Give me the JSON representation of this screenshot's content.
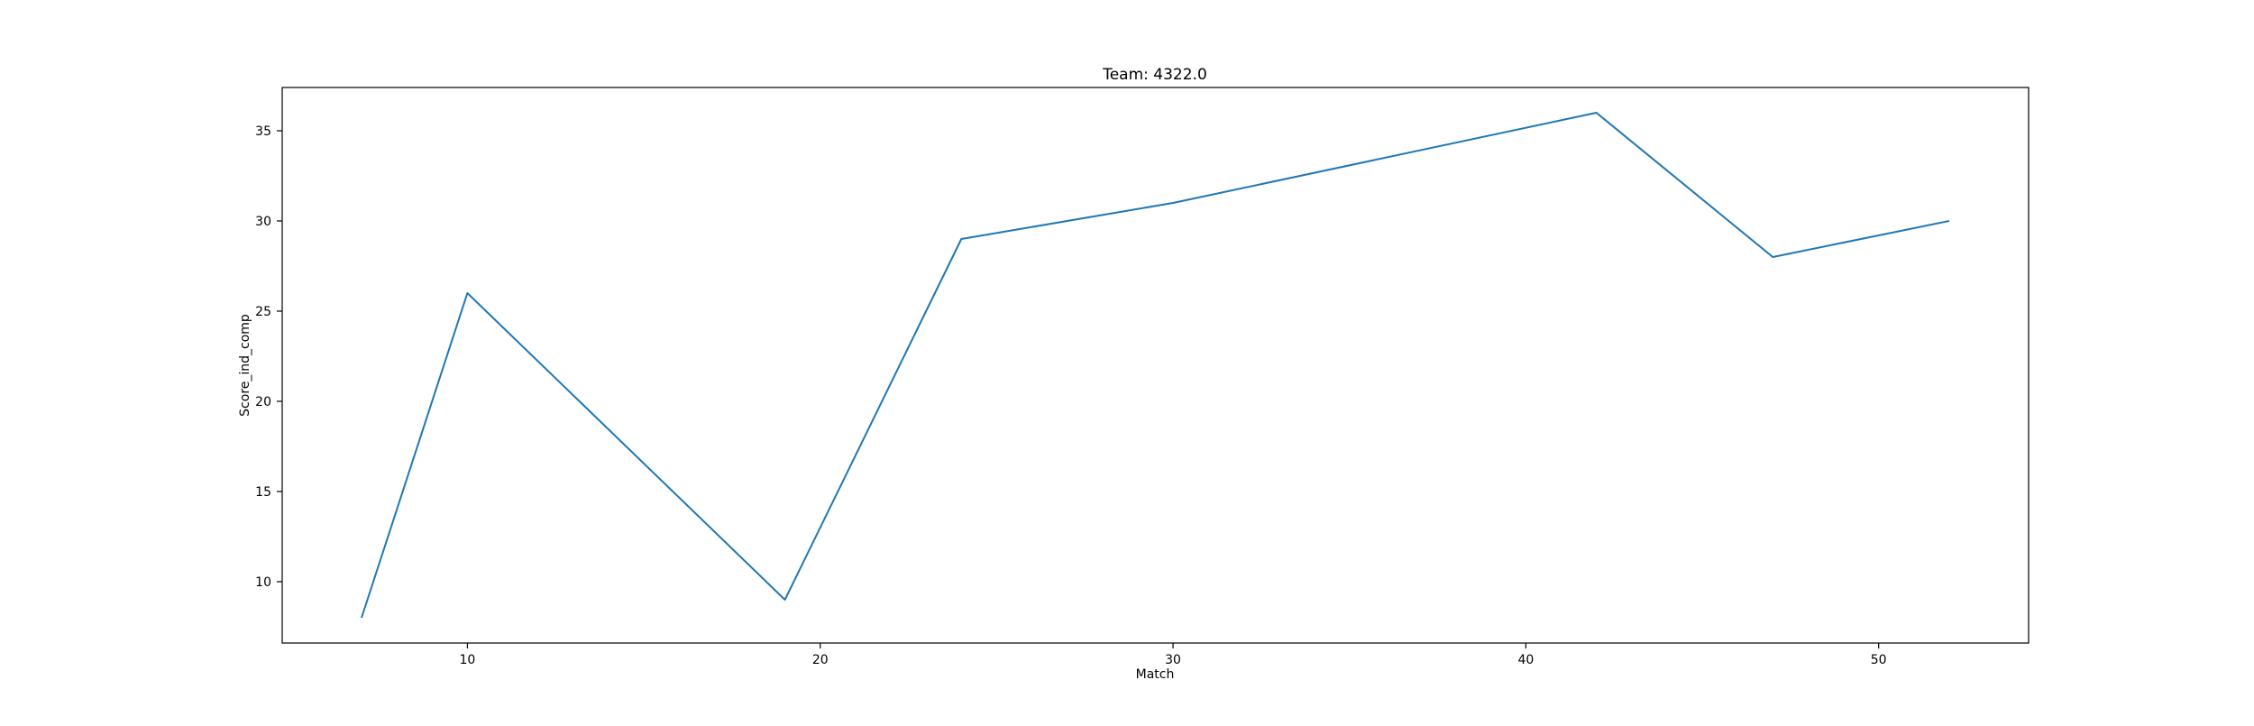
{
  "chart_data": {
    "type": "line",
    "title": "Team: 4322.0",
    "xlabel": "Match",
    "ylabel": "Score_ind_comp",
    "xlim": [
      4.75,
      54.25
    ],
    "ylim": [
      6.6,
      37.4
    ],
    "xticks": [
      10,
      20,
      30,
      40,
      50
    ],
    "yticks": [
      10,
      15,
      20,
      25,
      30,
      35
    ],
    "grid": false,
    "series": [
      {
        "color": "#1f77b4",
        "x": [
          7,
          10,
          19,
          24,
          30,
          42,
          47,
          52
        ],
        "y": [
          8,
          26,
          9,
          29,
          31,
          36,
          28,
          30
        ]
      }
    ]
  }
}
